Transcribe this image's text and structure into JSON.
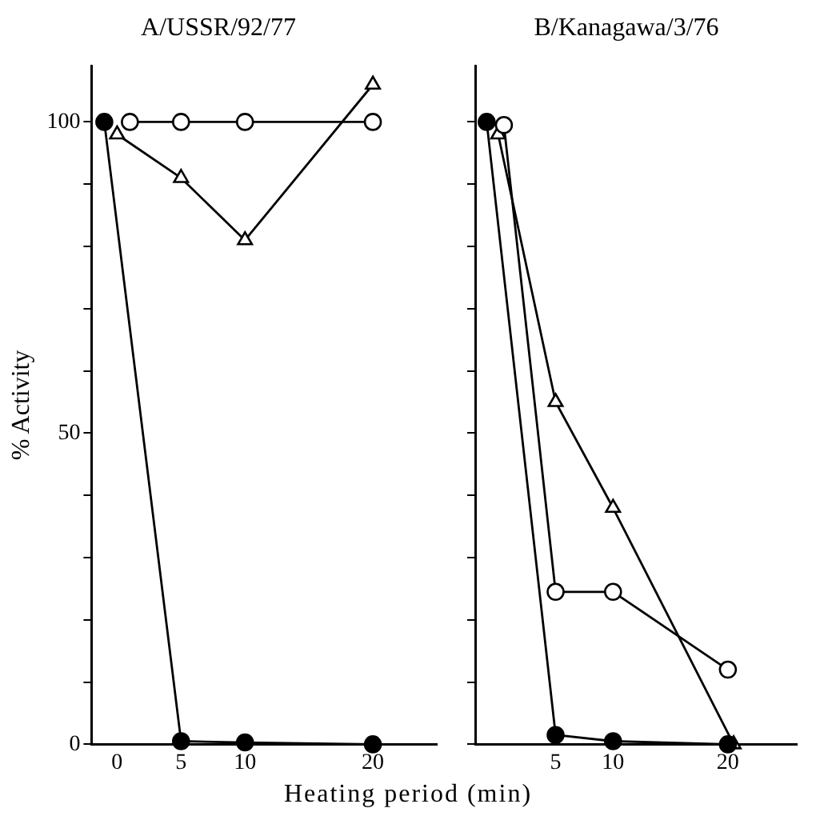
{
  "chart_data": [
    {
      "type": "line",
      "title": "A/USSR/92/77",
      "xlabel": "Heating period (min)",
      "ylabel": "% Activity",
      "xlim": [
        -2,
        25
      ],
      "xticks": [
        0,
        5,
        10,
        20
      ],
      "ylim": [
        0,
        109
      ],
      "yticks": [
        0,
        {
          "value": 10,
          "label": null
        },
        {
          "value": 20,
          "label": null
        },
        {
          "value": 30,
          "label": null
        },
        {
          "value": 40,
          "label": null
        },
        50,
        {
          "value": 60,
          "label": null
        },
        {
          "value": 70,
          "label": null
        },
        {
          "value": 80,
          "label": null
        },
        {
          "value": 90,
          "label": null
        },
        100
      ],
      "grid": false,
      "legend": false,
      "series": [
        {
          "color": "#000000",
          "marker": "circle",
          "x": [
            -1,
            5,
            10,
            20
          ],
          "values": [
            100,
            0.5,
            0.3,
            0
          ]
        },
        {
          "color": "#000000",
          "marker": "circle",
          "x": [
            1,
            5,
            10,
            20
          ],
          "values": [
            100,
            100,
            100,
            100
          ]
        },
        {
          "color": "#000000",
          "marker": "triangle",
          "x": [
            0,
            5,
            10,
            20
          ],
          "values": [
            98,
            91,
            81,
            106
          ]
        }
      ]
    },
    {
      "type": "line",
      "title": "B/Kanagawa/3/76",
      "xlim": [
        -2,
        26
      ],
      "xticks": [
        5,
        10,
        20
      ],
      "ylim": [
        0,
        109
      ],
      "yticks": [
        0,
        {
          "value": 10,
          "label": null
        },
        {
          "value": 20,
          "label": null
        },
        {
          "value": 30,
          "label": null
        },
        {
          "value": 40,
          "label": null
        },
        50,
        {
          "value": 60,
          "label": null
        },
        {
          "value": 70,
          "label": null
        },
        {
          "value": 80,
          "label": null
        },
        {
          "value": 90,
          "label": null
        },
        100
      ],
      "tick_labels": "x",
      "grid": false,
      "legend": false,
      "series": [
        {
          "color": "#000000",
          "marker": "circle",
          "x": [
            -1,
            5,
            10,
            20
          ],
          "values": [
            100,
            1.5,
            0.5,
            0
          ]
        },
        {
          "color": "#000000",
          "marker": "circle",
          "x": [
            0.5,
            5,
            10,
            20
          ],
          "values": [
            99.5,
            24.5,
            24.5,
            12
          ]
        },
        {
          "color": "#000000",
          "marker": "triangle",
          "x": [
            0,
            5,
            10,
            20.5
          ],
          "values": [
            98,
            55,
            38,
            0
          ]
        }
      ]
    }
  ]
}
